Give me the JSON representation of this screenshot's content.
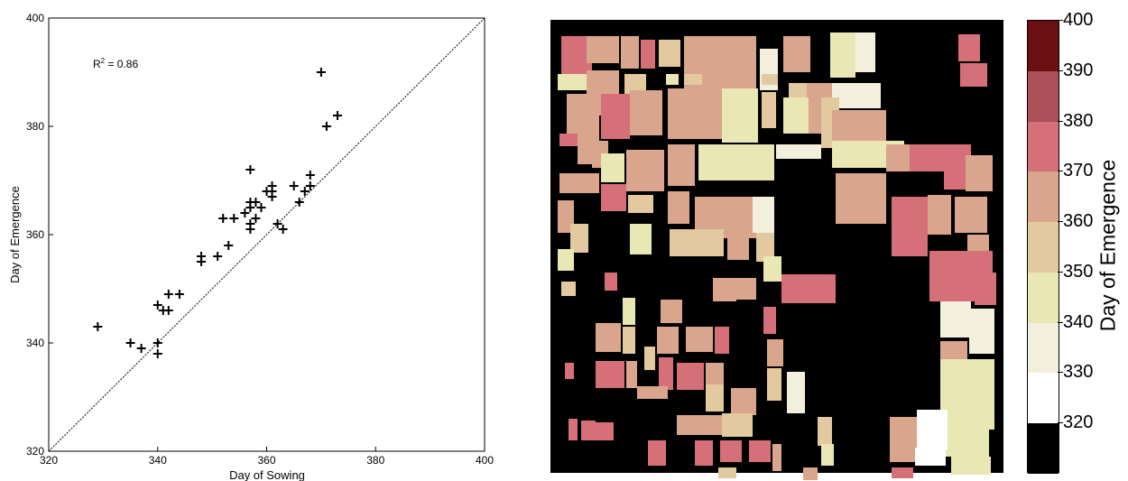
{
  "chart_data": [
    {
      "type": "scatter",
      "xlabel": "Day of Sowing",
      "ylabel": "Day of Emergence",
      "xlim": [
        320,
        400
      ],
      "ylim": [
        320,
        400
      ],
      "xticks": [
        320,
        340,
        360,
        380,
        400
      ],
      "yticks": [
        320,
        340,
        360,
        380,
        400
      ],
      "annotation": "R² = 0.86",
      "reference_line": "1:1",
      "marker": "+",
      "grid": false,
      "points": [
        [
          329,
          343
        ],
        [
          335,
          340
        ],
        [
          337,
          339
        ],
        [
          340,
          340
        ],
        [
          340,
          338
        ],
        [
          340,
          347
        ],
        [
          341,
          346
        ],
        [
          342,
          346
        ],
        [
          342,
          349
        ],
        [
          344,
          349
        ],
        [
          348,
          356
        ],
        [
          348,
          355
        ],
        [
          351,
          356
        ],
        [
          352,
          363
        ],
        [
          353,
          358
        ],
        [
          354,
          363
        ],
        [
          356,
          364
        ],
        [
          357,
          372
        ],
        [
          357,
          366
        ],
        [
          357,
          362
        ],
        [
          357,
          361
        ],
        [
          357,
          365
        ],
        [
          358,
          366
        ],
        [
          358,
          363
        ],
        [
          359,
          365
        ],
        [
          360,
          368
        ],
        [
          361,
          367
        ],
        [
          361,
          368
        ],
        [
          361,
          369
        ],
        [
          362,
          362
        ],
        [
          363,
          361
        ],
        [
          365,
          369
        ],
        [
          366,
          366
        ],
        [
          367,
          368
        ],
        [
          368,
          371
        ],
        [
          368,
          369
        ],
        [
          370,
          390
        ],
        [
          371,
          380
        ],
        [
          373,
          382
        ]
      ]
    },
    {
      "type": "heatmap",
      "colorbar_label": "Day of Emergence",
      "colorbar_ticks": [
        "320",
        "330",
        "340",
        "350",
        "360",
        "370",
        "380",
        "390",
        "400"
      ],
      "colorbar_colors": [
        "#000000",
        "#ffffff",
        "#f2f0dc",
        "#e9e7b3",
        "#e2c9a0",
        "#d9a58c",
        "#d57078",
        "#ad5059",
        "#6a0f12"
      ],
      "background": "#000000"
    }
  ]
}
